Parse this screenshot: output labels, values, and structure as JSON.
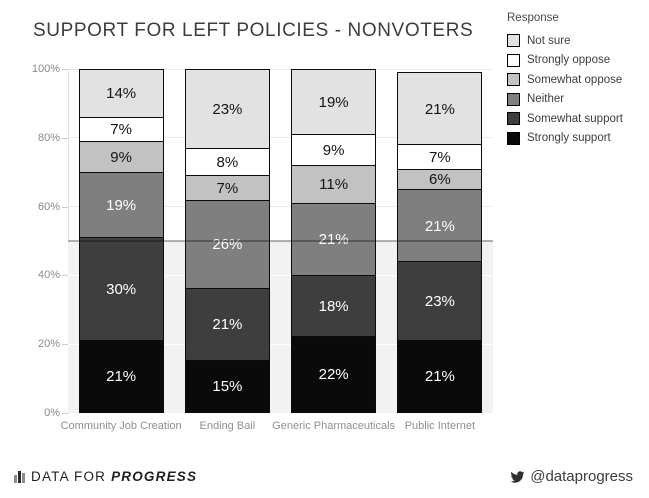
{
  "title": "SUPPORT FOR LEFT POLICIES - NONVOTERS",
  "chart_data": {
    "type": "bar",
    "stacked": true,
    "title": "SUPPORT FOR LEFT POLICIES - NONVOTERS",
    "categories": [
      "Community Job Creation",
      "Ending Bail",
      "Generic Pharmaceuticals",
      "Public Internet"
    ],
    "series_bottom_to_top": [
      {
        "name": "Strongly support",
        "color": "#0a0a0a",
        "label_color": "#ffffff",
        "values": [
          21,
          15,
          22,
          21
        ]
      },
      {
        "name": "Somewhat support",
        "color": "#3e3e3e",
        "label_color": "#ffffff",
        "values": [
          30,
          21,
          18,
          23
        ]
      },
      {
        "name": "Neither",
        "color": "#7f7f7f",
        "label_color": "#ffffff",
        "values": [
          19,
          26,
          21,
          21
        ]
      },
      {
        "name": "Somewhat oppose",
        "color": "#c2c2c2",
        "label_color": "#141414",
        "values": [
          9,
          7,
          11,
          6
        ]
      },
      {
        "name": "Strongly oppose",
        "color": "#ffffff",
        "label_color": "#141414",
        "values": [
          7,
          8,
          9,
          7
        ]
      },
      {
        "name": "Not sure",
        "color": "#e2e2e2",
        "label_color": "#141414",
        "values": [
          14,
          23,
          19,
          21
        ]
      }
    ],
    "value_suffix": "%",
    "legend": {
      "title": "Response",
      "items_top_to_bottom": [
        "Not sure",
        "Strongly oppose",
        "Somewhat oppose",
        "Neither",
        "Somewhat support",
        "Strongly support"
      ]
    },
    "y_ticks": [
      "0%",
      "20%",
      "40%",
      "60%",
      "80%",
      "100%"
    ],
    "ylim": [
      0,
      100
    ],
    "reference_line_pct": 50,
    "grid": true,
    "legend_position": "top-right",
    "shaded_band_below_pct": 50,
    "shaded_band_color": "#f2f2f2"
  },
  "footer": {
    "brand_prefix": "DATA FOR ",
    "brand_emphasis": "PROGRESS",
    "brand_icon": "bar-chart-icon",
    "twitter_icon": "twitter-icon",
    "twitter_handle": "@dataprogress"
  }
}
